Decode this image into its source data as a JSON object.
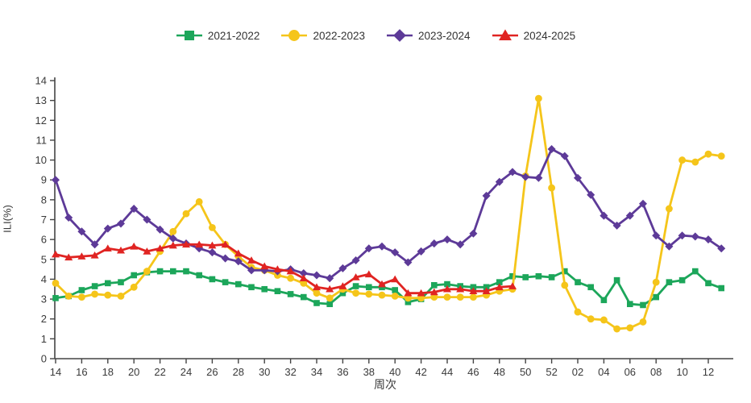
{
  "chart_data": {
    "type": "line",
    "title": "",
    "xlabel": "周次",
    "ylabel": "ILI(%)",
    "ylim": [
      0,
      14
    ],
    "ytick_step": 1,
    "xtick_label_every": 2,
    "grid": false,
    "legend_position": "top-center",
    "axis_color": "#444444",
    "text_color": "#3a3a3a",
    "x_categories": [
      "14",
      "15",
      "16",
      "17",
      "18",
      "19",
      "20",
      "21",
      "22",
      "23",
      "24",
      "25",
      "26",
      "27",
      "28",
      "29",
      "30",
      "31",
      "32",
      "33",
      "34",
      "35",
      "36",
      "37",
      "38",
      "39",
      "40",
      "41",
      "42",
      "43",
      "44",
      "45",
      "46",
      "47",
      "48",
      "49",
      "50",
      "51",
      "52",
      "01",
      "02",
      "03",
      "04",
      "05",
      "06",
      "07",
      "08",
      "09",
      "10",
      "11",
      "12",
      "13"
    ],
    "series": [
      {
        "name": "2021-2022",
        "color": "#1CA65A",
        "marker": "square",
        "values": [
          3.05,
          3.15,
          3.45,
          3.65,
          3.8,
          3.85,
          4.2,
          4.35,
          4.4,
          4.4,
          4.4,
          4.2,
          4.0,
          3.85,
          3.75,
          3.6,
          3.5,
          3.4,
          3.25,
          3.1,
          2.8,
          2.75,
          3.3,
          3.65,
          3.6,
          3.6,
          3.45,
          2.85,
          3.0,
          3.7,
          3.75,
          3.65,
          3.6,
          3.6,
          3.85,
          4.15,
          4.1,
          4.15,
          4.1,
          4.4,
          3.85,
          3.6,
          2.95,
          3.95,
          2.75,
          2.7,
          3.1,
          3.85,
          3.95,
          4.4,
          3.8,
          3.55
        ]
      },
      {
        "name": "2022-2023",
        "color": "#F5C51A",
        "marker": "circle",
        "values": [
          3.8,
          3.15,
          3.1,
          3.25,
          3.2,
          3.15,
          3.6,
          4.4,
          5.4,
          6.4,
          7.3,
          7.9,
          6.6,
          5.75,
          5.15,
          4.6,
          4.45,
          4.2,
          4.05,
          3.8,
          3.3,
          3.05,
          3.5,
          3.3,
          3.25,
          3.2,
          3.15,
          3.05,
          3.05,
          3.1,
          3.1,
          3.1,
          3.1,
          3.2,
          3.4,
          3.5,
          9.2,
          13.1,
          8.6,
          3.7,
          2.35,
          2.0,
          1.95,
          1.5,
          1.55,
          1.85,
          3.85,
          7.55,
          10.0,
          9.9,
          10.3,
          10.2
        ]
      },
      {
        "name": "2023-2024",
        "color": "#5D3A98",
        "marker": "diamond",
        "values": [
          9.0,
          7.1,
          6.4,
          5.75,
          6.55,
          6.8,
          7.55,
          7.0,
          6.5,
          6.05,
          5.8,
          5.55,
          5.35,
          5.05,
          4.9,
          4.45,
          4.45,
          4.4,
          4.5,
          4.3,
          4.2,
          4.05,
          4.55,
          4.95,
          5.55,
          5.65,
          5.35,
          4.85,
          5.4,
          5.8,
          6.0,
          5.75,
          6.3,
          8.2,
          8.9,
          9.4,
          9.15,
          9.1,
          10.55,
          10.2,
          9.1,
          8.25,
          7.2,
          6.7,
          7.2,
          7.8,
          6.2,
          5.65,
          6.2,
          6.15,
          6.0,
          5.55
        ]
      },
      {
        "name": "2024-2025",
        "color": "#E02422",
        "marker": "triangle",
        "values": [
          5.25,
          5.1,
          5.15,
          5.2,
          5.55,
          5.45,
          5.65,
          5.4,
          5.55,
          5.7,
          5.75,
          5.75,
          5.7,
          5.75,
          5.3,
          4.95,
          4.65,
          4.5,
          4.4,
          4.05,
          3.6,
          3.5,
          3.65,
          4.1,
          4.25,
          3.75,
          4.0,
          3.3,
          3.3,
          3.35,
          3.5,
          3.5,
          3.4,
          3.4,
          3.6,
          3.65,
          null,
          null,
          null,
          null,
          null,
          null,
          null,
          null,
          null,
          null,
          null,
          null,
          null,
          null,
          null,
          null
        ]
      }
    ]
  }
}
